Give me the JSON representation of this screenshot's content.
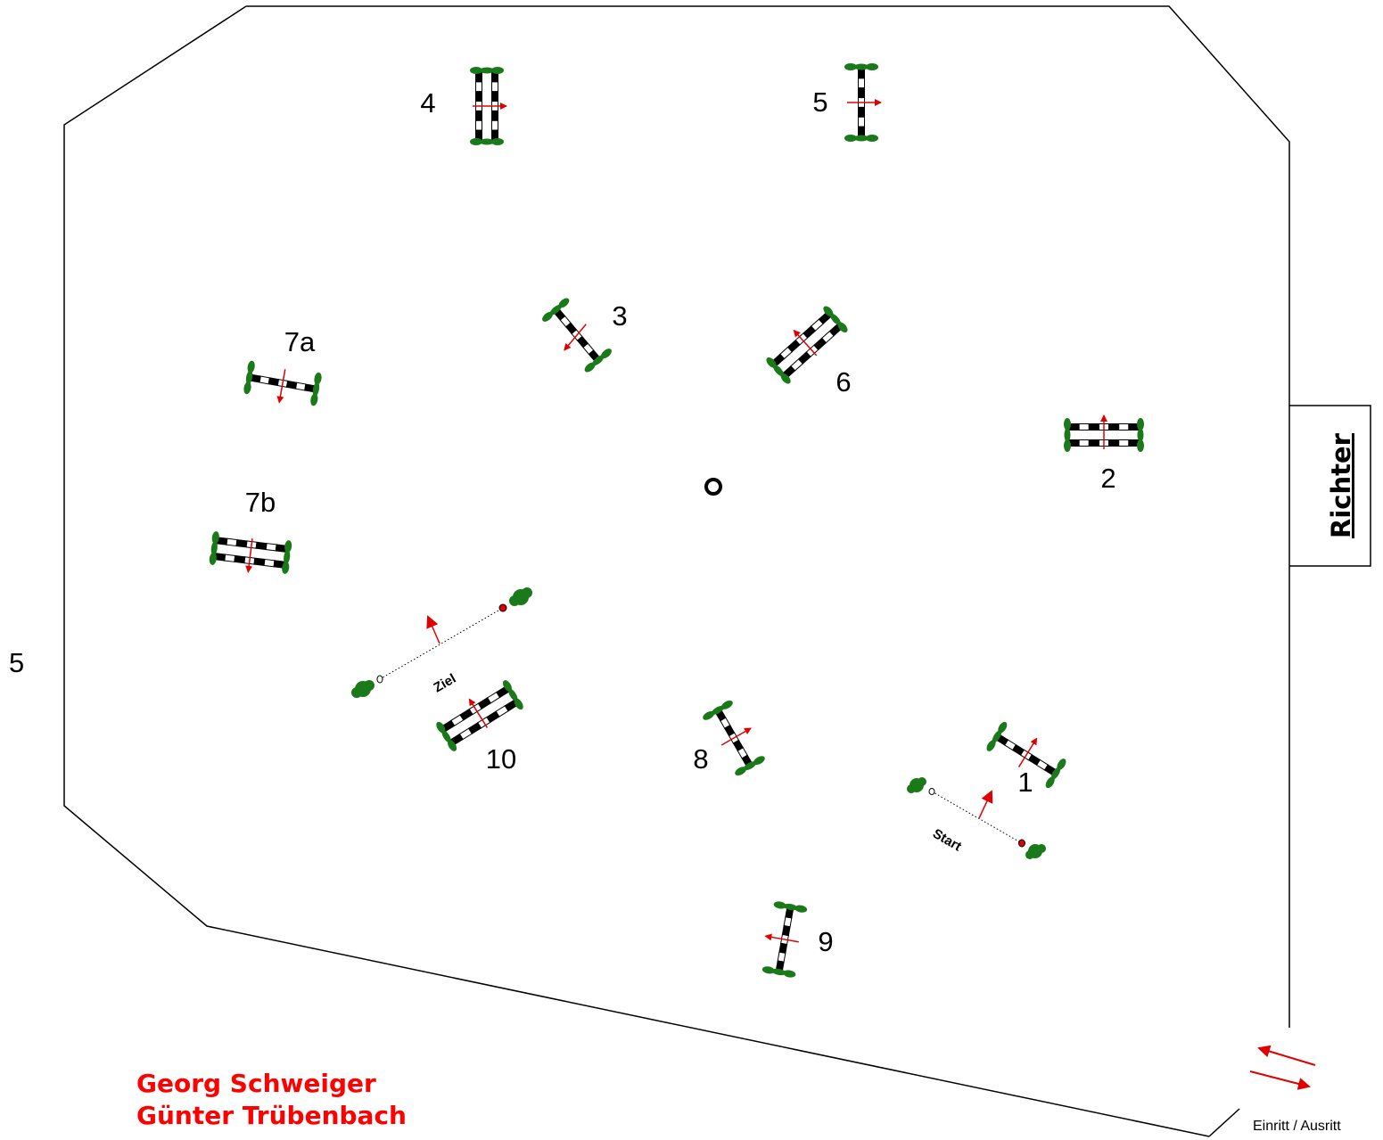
{
  "arena": {
    "left_number": "5"
  },
  "judge": {
    "label": "Richter"
  },
  "entrance": {
    "label": "Einritt / Ausritt"
  },
  "designers": [
    "Georg Schweiger",
    "Günter Trübenbach"
  ],
  "start_line": {
    "label": "Start"
  },
  "finish_line": {
    "label": "Ziel"
  },
  "obstacles": [
    {
      "label": "1",
      "kind": "vertical"
    },
    {
      "label": "2",
      "kind": "oxer"
    },
    {
      "label": "3",
      "kind": "vertical"
    },
    {
      "label": "4",
      "kind": "oxer"
    },
    {
      "label": "5",
      "kind": "vertical"
    },
    {
      "label": "6",
      "kind": "oxer"
    },
    {
      "label": "7a",
      "kind": "vertical"
    },
    {
      "label": "7b",
      "kind": "oxer"
    },
    {
      "label": "8",
      "kind": "vertical"
    },
    {
      "label": "9",
      "kind": "vertical"
    },
    {
      "label": "10",
      "kind": "oxer"
    }
  ],
  "colors": {
    "pole_dark": "#000000",
    "pole_light": "#ffffff",
    "wing": "#1a7a1a",
    "arrow": "#e00000",
    "designer_text": "#ff0000",
    "arena_line": "#000000"
  }
}
